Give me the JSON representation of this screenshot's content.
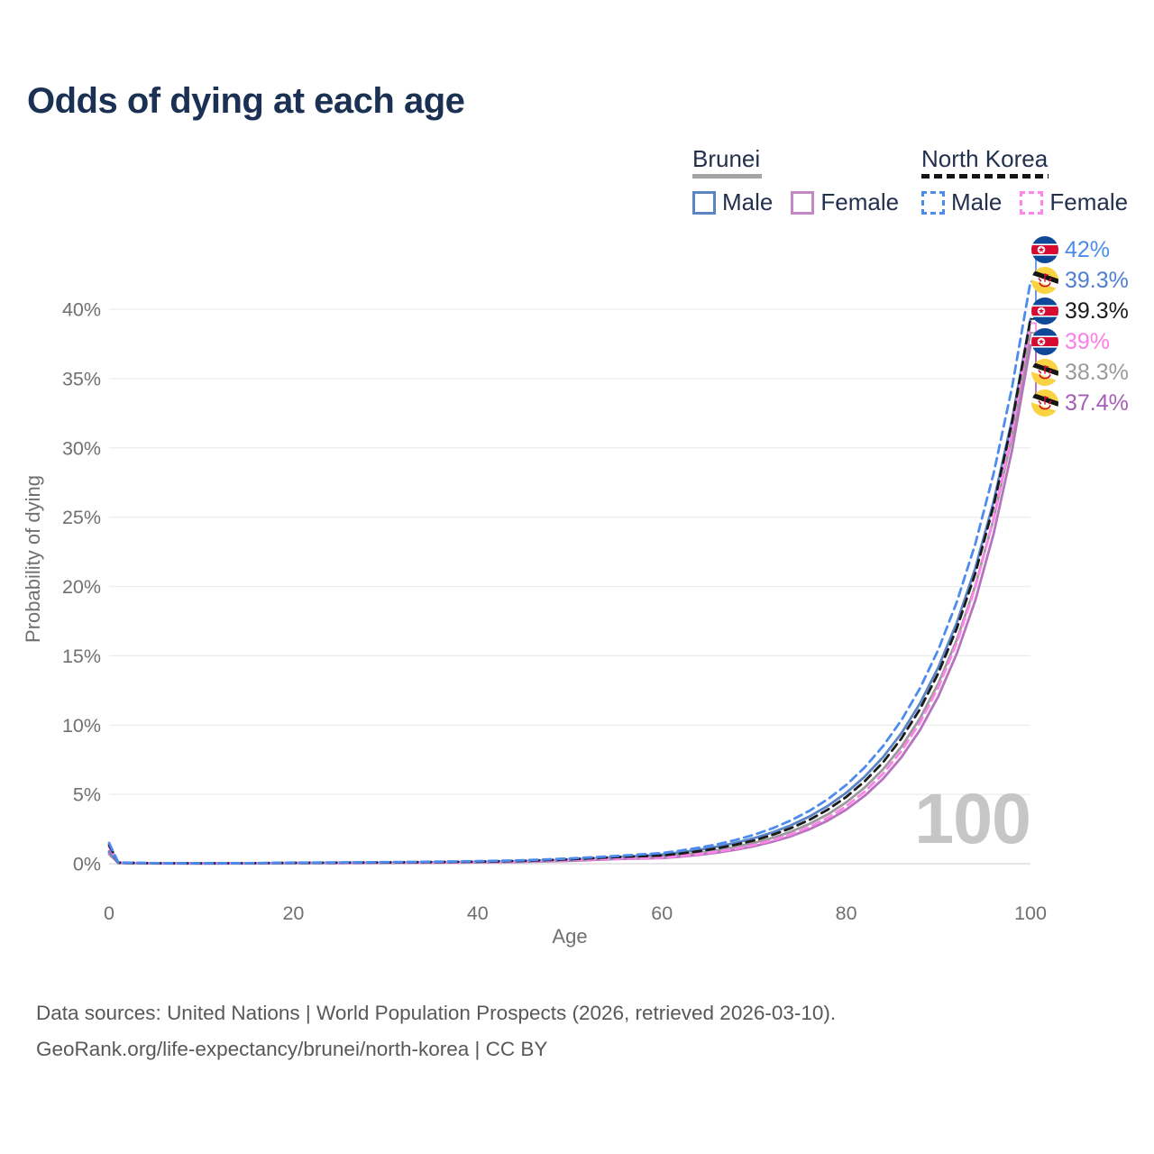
{
  "title": "Odds of dying at each age",
  "watermark": "100",
  "legend": {
    "brunei": {
      "name": "Brunei",
      "male": "Male",
      "female": "Female"
    },
    "north_korea": {
      "name": "North Korea",
      "male": "Male",
      "female": "Female"
    }
  },
  "footer": {
    "line1": "Data sources: United Nations | World Population Prospects (2026, retrieved 2026-03-10).",
    "line2": "GeoRank.org/life-expectancy/brunei/north-korea | CC BY"
  },
  "chart_data": {
    "type": "line",
    "title": "Odds of dying at each age",
    "xlabel": "Age",
    "ylabel": "Probability of dying",
    "xlim": [
      0,
      100
    ],
    "ylim": [
      0,
      44
    ],
    "grid": true,
    "legend_position": "top-right",
    "x_ticks": [
      0,
      20,
      40,
      60,
      80,
      100
    ],
    "y_ticks": [
      {
        "value": 0,
        "label": "0%"
      },
      {
        "value": 5,
        "label": "5%"
      },
      {
        "value": 10,
        "label": "10%"
      },
      {
        "value": 15,
        "label": "15%"
      },
      {
        "value": 20,
        "label": "20%"
      },
      {
        "value": 25,
        "label": "25%"
      },
      {
        "value": 30,
        "label": "30%"
      },
      {
        "value": 35,
        "label": "35%"
      },
      {
        "value": 40,
        "label": "40%"
      }
    ],
    "ages": [
      0,
      1,
      5,
      10,
      15,
      20,
      25,
      30,
      35,
      40,
      45,
      50,
      55,
      60,
      62,
      64,
      66,
      68,
      70,
      72,
      74,
      76,
      78,
      80,
      82,
      84,
      86,
      88,
      90,
      92,
      94,
      96,
      98,
      100
    ],
    "series": [
      {
        "key": "brunei_female",
        "name": "Brunei Female",
        "country": "Brunei",
        "sex": "Female",
        "color": "#b674bd",
        "dash": false,
        "values": [
          0.7,
          0.05,
          0.02,
          0.02,
          0.02,
          0.03,
          0.04,
          0.05,
          0.07,
          0.09,
          0.13,
          0.2,
          0.33,
          0.41,
          0.51,
          0.64,
          0.8,
          1.01,
          1.26,
          1.58,
          1.98,
          2.48,
          3.11,
          3.9,
          4.89,
          6.13,
          7.69,
          9.64,
          12.08,
          15.15,
          18.98,
          23.8,
          29.85,
          37.4
        ]
      },
      {
        "key": "brunei_all",
        "name": "Brunei",
        "country": "Brunei",
        "sex": "Both",
        "color": "#9b9b9b",
        "dash": false,
        "values": [
          0.8,
          0.055,
          0.025,
          0.02,
          0.025,
          0.045,
          0.055,
          0.065,
          0.085,
          0.11,
          0.155,
          0.24,
          0.39,
          0.51,
          0.63,
          0.79,
          0.97,
          1.21,
          1.5,
          1.86,
          2.31,
          2.87,
          3.56,
          4.42,
          5.49,
          6.81,
          8.45,
          10.48,
          13.01,
          16.14,
          20.03,
          24.86,
          30.86,
          38.3
        ]
      },
      {
        "key": "brunei_male",
        "name": "Brunei Male",
        "country": "Brunei",
        "sex": "Male",
        "color": "#5b84c4",
        "dash": false,
        "values": [
          0.9,
          0.06,
          0.03,
          0.02,
          0.03,
          0.06,
          0.07,
          0.08,
          0.1,
          0.13,
          0.18,
          0.28,
          0.45,
          0.66,
          0.82,
          1.0,
          1.23,
          1.5,
          1.84,
          2.26,
          2.77,
          3.4,
          4.17,
          5.11,
          6.27,
          7.69,
          9.42,
          11.56,
          14.17,
          17.38,
          21.31,
          26.13,
          32.05,
          39.3
        ]
      },
      {
        "key": "nk_female",
        "name": "North Korea Female",
        "country": "North Korea",
        "sex": "Female",
        "color": "#ff83ea",
        "dash": true,
        "values": [
          1.2,
          0.07,
          0.03,
          0.02,
          0.03,
          0.05,
          0.06,
          0.07,
          0.09,
          0.12,
          0.17,
          0.26,
          0.38,
          0.44,
          0.55,
          0.69,
          0.87,
          1.08,
          1.35,
          1.69,
          2.12,
          2.65,
          3.32,
          4.15,
          5.19,
          6.5,
          8.13,
          10.17,
          12.73,
          15.92,
          19.92,
          24.92,
          31.17,
          39.0
        ]
      },
      {
        "key": "nk_all",
        "name": "North Korea",
        "country": "North Korea",
        "sex": "Both",
        "color": "#1b1b1b",
        "dash": true,
        "values": [
          1.35,
          0.08,
          0.035,
          0.025,
          0.035,
          0.065,
          0.075,
          0.09,
          0.115,
          0.15,
          0.21,
          0.32,
          0.48,
          0.59,
          0.73,
          0.9,
          1.11,
          1.37,
          1.68,
          2.08,
          2.56,
          3.16,
          3.9,
          4.81,
          5.94,
          7.32,
          9.04,
          11.15,
          13.75,
          16.97,
          20.93,
          25.82,
          31.86,
          39.3
        ]
      },
      {
        "key": "nk_male",
        "name": "North Korea Male",
        "country": "North Korea",
        "sex": "Male",
        "color": "#4d8cee",
        "dash": true,
        "values": [
          1.5,
          0.09,
          0.04,
          0.03,
          0.04,
          0.08,
          0.09,
          0.11,
          0.14,
          0.18,
          0.25,
          0.38,
          0.55,
          0.77,
          0.94,
          1.15,
          1.4,
          1.71,
          2.09,
          2.55,
          3.12,
          3.81,
          4.65,
          5.68,
          6.94,
          8.48,
          10.36,
          12.65,
          15.45,
          18.87,
          23.05,
          28.15,
          34.39,
          42.0
        ]
      }
    ],
    "end_labels": [
      {
        "series": "nk_male",
        "flag": "north-korea",
        "text": "42%",
        "color": "#4a8ce8",
        "value": 42
      },
      {
        "series": "brunei_male",
        "flag": "brunei",
        "text": "39.3%",
        "color": "#4f7ed2",
        "value": 39.3
      },
      {
        "series": "nk_all",
        "flag": "north-korea",
        "text": "39.3%",
        "color": "#1b1b1b",
        "value": 39.3
      },
      {
        "series": "nk_female",
        "flag": "north-korea",
        "text": "39%",
        "color": "#ff7de9",
        "value": 39
      },
      {
        "series": "brunei_all",
        "flag": "brunei",
        "text": "38.3%",
        "color": "#9a9a9a",
        "value": 38.3
      },
      {
        "series": "brunei_female",
        "flag": "brunei",
        "text": "37.4%",
        "color": "#a55db6",
        "value": 37.4
      }
    ]
  }
}
